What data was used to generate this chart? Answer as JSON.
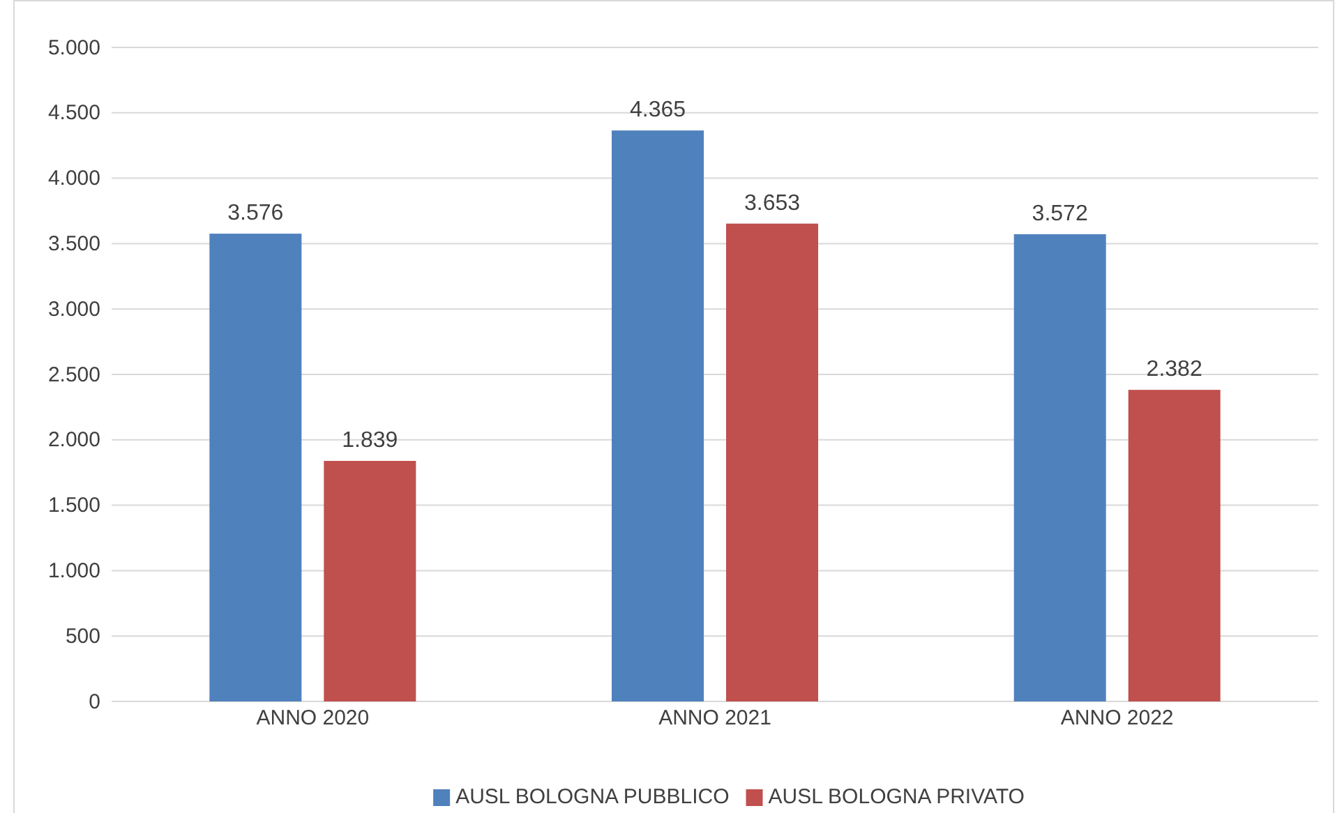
{
  "chart_data": {
    "type": "bar",
    "categories": [
      "ANNO 2020",
      "ANNO 2021",
      "ANNO 2022"
    ],
    "series": [
      {
        "name": "AUSL BOLOGNA PUBBLICO",
        "color": "#4f81bd",
        "values": [
          3576,
          4365,
          3572
        ],
        "value_labels": [
          "3.576",
          "4.365",
          "3.572"
        ]
      },
      {
        "name": "AUSL BOLOGNA PRIVATO",
        "color": "#c0504d",
        "values": [
          1839,
          3653,
          2382
        ],
        "value_labels": [
          "1.839",
          "3.653",
          "2.382"
        ]
      }
    ],
    "ylim": [
      0,
      5000
    ],
    "yticks": [
      {
        "value": 0,
        "label": "0"
      },
      {
        "value": 500,
        "label": "500"
      },
      {
        "value": 1000,
        "label": "1.000"
      },
      {
        "value": 1500,
        "label": "1.500"
      },
      {
        "value": 2000,
        "label": "2.000"
      },
      {
        "value": 2500,
        "label": "2.500"
      },
      {
        "value": 3000,
        "label": "3.000"
      },
      {
        "value": 3500,
        "label": "3.500"
      },
      {
        "value": 4000,
        "label": "4.000"
      },
      {
        "value": 4500,
        "label": "4.500"
      },
      {
        "value": 5000,
        "label": "5.000"
      }
    ],
    "grid": "y",
    "legend": "bottom"
  }
}
